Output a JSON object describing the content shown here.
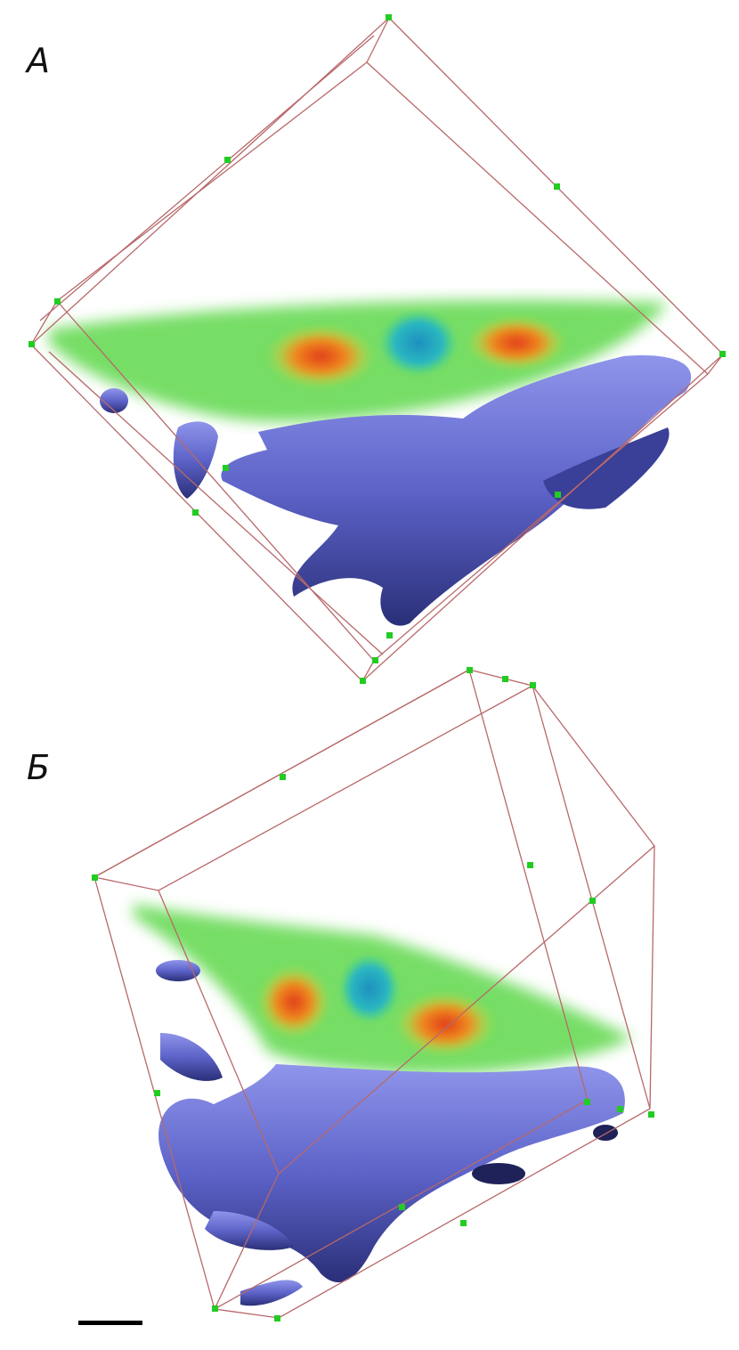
{
  "panels": [
    {
      "label": "А"
    },
    {
      "label": "Б"
    }
  ],
  "colors": {
    "bounding_box": "#b8686a",
    "marker": "#22cc22",
    "surface": "#5d63c8",
    "volume_low": "#4fd24a",
    "volume_mid": "#d6e02a",
    "volume_high": "#e2461c",
    "nucleus": "#2aa6c8"
  },
  "scale_bar": {
    "color": "#000000"
  }
}
